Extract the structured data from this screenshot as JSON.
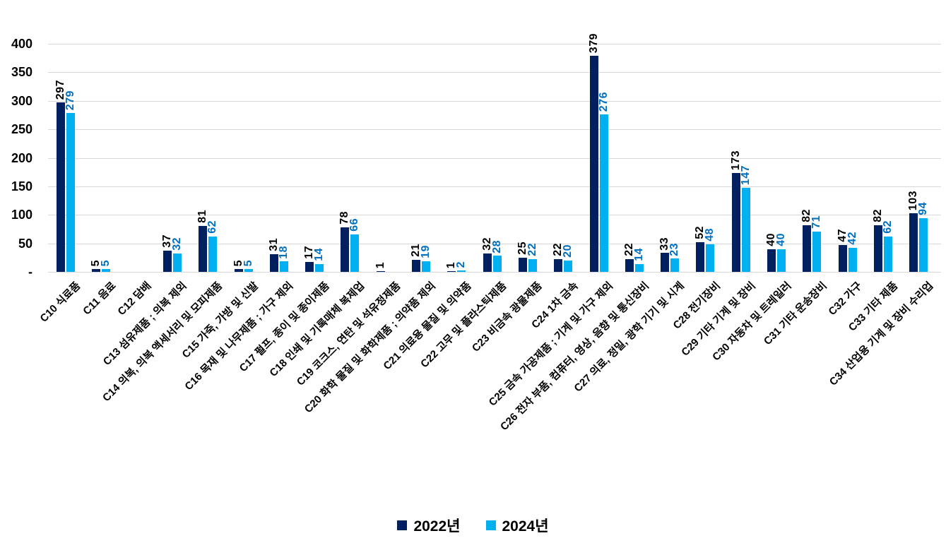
{
  "chart_data": {
    "type": "bar",
    "title": "",
    "xlabel": "",
    "ylabel": "",
    "ylim": [
      0,
      400
    ],
    "ytick_step": 50,
    "ytick_labels": [
      "-",
      "50",
      "100",
      "150",
      "200",
      "250",
      "300",
      "350",
      "400"
    ],
    "grid": true,
    "legend_position": "bottom",
    "categories": [
      "C10 식료품",
      "C11 음료",
      "C12 담배",
      "C13 섬유제품 ; 의복 제외",
      "C14 의복, 의복 액세서리 및 모피제품",
      "C15 가죽, 가방 및 신발",
      "C16 목재 및 나무제품 ; 가구 제외",
      "C17 펄프, 종이 및 종이제품",
      "C18 인쇄 및 기록매체 복제업",
      "C19 코크스, 연탄 및 석유정제품",
      "C20 화학 물질 및 화학제품 ; 의약품 제외",
      "C21 의료용 물질 및 의약품",
      "C22 고무 및 플라스틱제품",
      "C23 비금속 광물제품",
      "C24 1차 금속",
      "C25 금속 가공제품 ; 기계 및 가구 제외",
      "C26 전자 부품, 컴퓨터, 영상, 음향 및 통신장비",
      "C27 의료, 정밀, 광학 기기 및 시계",
      "C28 전기장비",
      "C29 기타 기계 및 장비",
      "C30 자동차 및 트레일러",
      "C31 기타 운송장비",
      "C32 가구",
      "C33 기타 제품",
      "C34 산업용 기계 및 장비 수리업"
    ],
    "series": [
      {
        "name": "2022년",
        "color": "#002060",
        "label_color": "#000000",
        "values": [
          297,
          5,
          null,
          37,
          81,
          5,
          31,
          17,
          78,
          1,
          21,
          1,
          32,
          25,
          22,
          379,
          22,
          33,
          52,
          173,
          40,
          82,
          47,
          82,
          103
        ]
      },
      {
        "name": "2024년",
        "color": "#00b0f0",
        "label_color": "#0070c0",
        "values": [
          279,
          5,
          null,
          32,
          62,
          5,
          18,
          14,
          66,
          null,
          19,
          2,
          28,
          22,
          20,
          276,
          14,
          23,
          48,
          147,
          40,
          71,
          42,
          62,
          94
        ]
      }
    ]
  },
  "legend": {
    "items": [
      {
        "label": "2022년",
        "color": "#002060"
      },
      {
        "label": "2024년",
        "color": "#00b0f0"
      }
    ]
  },
  "colors": {
    "gridline": "#d9d9d9",
    "axis_text": "#000000",
    "background": "#ffffff"
  }
}
